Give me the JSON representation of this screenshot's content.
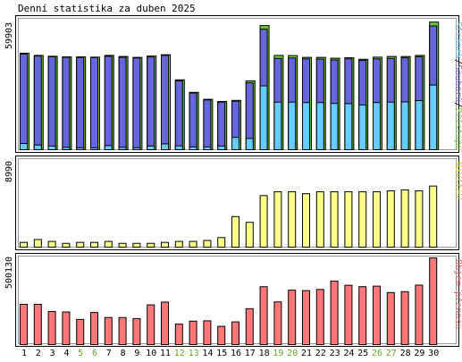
{
  "title": "Denní statistika za duben 2025",
  "colors": {
    "background": "#ffffff",
    "hits": "#66cc33",
    "files": "#6666dd",
    "pages": "#66ccff",
    "visits": "#ffff88",
    "volume": "#ff7777",
    "weekend_label": "#66aa22"
  },
  "chart_data": [
    {
      "type": "bar",
      "panel": "hits",
      "ytick": "59903",
      "ylim": [
        0,
        59903
      ],
      "legend": [
        {
          "text": "Stránek",
          "color": "#66ccff"
        },
        {
          "text": "/",
          "color": "#000000"
        },
        {
          "text": "Souborů",
          "color": "#6666dd"
        },
        {
          "text": "/",
          "color": "#000000"
        },
        {
          "text": "Přístupů",
          "color": "#66cc33"
        }
      ],
      "categories": [
        "1",
        "2",
        "3",
        "4",
        "5",
        "6",
        "7",
        "8",
        "9",
        "10",
        "11",
        "12",
        "13",
        "14",
        "15",
        "16",
        "17",
        "18",
        "19",
        "20",
        "21",
        "22",
        "23",
        "24",
        "25",
        "26",
        "27",
        "28",
        "29",
        "30"
      ],
      "series": [
        {
          "name": "Přístupů",
          "color": "#66cc33",
          "values": [
            44600,
            43600,
            43200,
            42900,
            42900,
            42800,
            43600,
            43100,
            42700,
            43300,
            43900,
            32300,
            26500,
            23300,
            22300,
            22800,
            31800,
            57400,
            43600,
            43500,
            42700,
            42700,
            42300,
            42500,
            41800,
            42800,
            43100,
            43100,
            43600,
            59000
          ]
        },
        {
          "name": "Souborů",
          "color": "#6666dd",
          "values": [
            44200,
            43300,
            43000,
            42700,
            42600,
            42600,
            43200,
            42700,
            42400,
            42900,
            43600,
            31800,
            26200,
            23000,
            22000,
            22400,
            30900,
            55700,
            42200,
            42400,
            42000,
            41900,
            41500,
            42000,
            41300,
            42000,
            42200,
            42500,
            43000,
            57200
          ]
        },
        {
          "name": "Stránek",
          "color": "#66ccff",
          "values": [
            2900,
            2200,
            1700,
            1100,
            900,
            900,
            1900,
            1100,
            900,
            1700,
            2700,
            1800,
            1300,
            1300,
            1700,
            5700,
            5200,
            29500,
            22000,
            22000,
            21800,
            21800,
            21400,
            21300,
            20700,
            21800,
            22000,
            22100,
            22700,
            29900
          ]
        }
      ]
    },
    {
      "type": "bar",
      "panel": "visits",
      "ytick": "8990",
      "ylim": [
        0,
        8990
      ],
      "legend": [
        {
          "text": "Návštěv",
          "color": "#cccc33"
        }
      ],
      "categories": [
        "1",
        "2",
        "3",
        "4",
        "5",
        "6",
        "7",
        "8",
        "9",
        "10",
        "11",
        "12",
        "13",
        "14",
        "15",
        "16",
        "17",
        "18",
        "19",
        "20",
        "21",
        "22",
        "23",
        "24",
        "25",
        "26",
        "27",
        "28",
        "29",
        "30"
      ],
      "series": [
        {
          "name": "Návštěv",
          "color": "#ffff88",
          "values": [
            500,
            800,
            600,
            400,
            500,
            500,
            600,
            400,
            400,
            400,
            500,
            600,
            600,
            700,
            1000,
            3200,
            2600,
            5400,
            5800,
            5800,
            5600,
            5800,
            5800,
            5800,
            5800,
            5800,
            5900,
            6000,
            5900,
            6400
          ]
        }
      ]
    },
    {
      "type": "bar",
      "panel": "volume",
      "ytick": "500130",
      "ylim": [
        0,
        500130
      ],
      "legend": [
        {
          "text": "Objem přenosu",
          "color": "#cc6666"
        }
      ],
      "categories": [
        "1",
        "2",
        "3",
        "4",
        "5",
        "6",
        "7",
        "8",
        "9",
        "10",
        "11",
        "12",
        "13",
        "14",
        "15",
        "16",
        "17",
        "18",
        "19",
        "20",
        "21",
        "22",
        "23",
        "24",
        "25",
        "26",
        "27",
        "28",
        "29",
        "30"
      ],
      "series": [
        {
          "name": "Objem přenosu",
          "color": "#ff7777",
          "values": [
            232000,
            232000,
            191000,
            188000,
            145000,
            185000,
            156000,
            156000,
            150000,
            229000,
            245000,
            118000,
            135000,
            137000,
            105000,
            131000,
            207000,
            334000,
            246000,
            314000,
            311000,
            318000,
            366000,
            342000,
            334000,
            337000,
            300000,
            305000,
            343000,
            500130
          ]
        }
      ]
    }
  ],
  "x_labels": [
    {
      "text": "1",
      "weekend": false
    },
    {
      "text": "2",
      "weekend": false
    },
    {
      "text": "3",
      "weekend": false
    },
    {
      "text": "4",
      "weekend": false
    },
    {
      "text": "5",
      "weekend": true
    },
    {
      "text": "6",
      "weekend": true
    },
    {
      "text": "7",
      "weekend": false
    },
    {
      "text": "8",
      "weekend": false
    },
    {
      "text": "9",
      "weekend": false
    },
    {
      "text": "10",
      "weekend": false
    },
    {
      "text": "11",
      "weekend": false
    },
    {
      "text": "12",
      "weekend": true
    },
    {
      "text": "13",
      "weekend": true
    },
    {
      "text": "14",
      "weekend": false
    },
    {
      "text": "15",
      "weekend": false
    },
    {
      "text": "16",
      "weekend": false
    },
    {
      "text": "17",
      "weekend": false
    },
    {
      "text": "18",
      "weekend": false
    },
    {
      "text": "19",
      "weekend": true
    },
    {
      "text": "20",
      "weekend": true
    },
    {
      "text": "21",
      "weekend": false
    },
    {
      "text": "22",
      "weekend": false
    },
    {
      "text": "23",
      "weekend": false
    },
    {
      "text": "24",
      "weekend": false
    },
    {
      "text": "25",
      "weekend": false
    },
    {
      "text": "26",
      "weekend": true
    },
    {
      "text": "27",
      "weekend": true
    },
    {
      "text": "28",
      "weekend": false
    },
    {
      "text": "29",
      "weekend": false
    },
    {
      "text": "30",
      "weekend": false
    }
  ]
}
